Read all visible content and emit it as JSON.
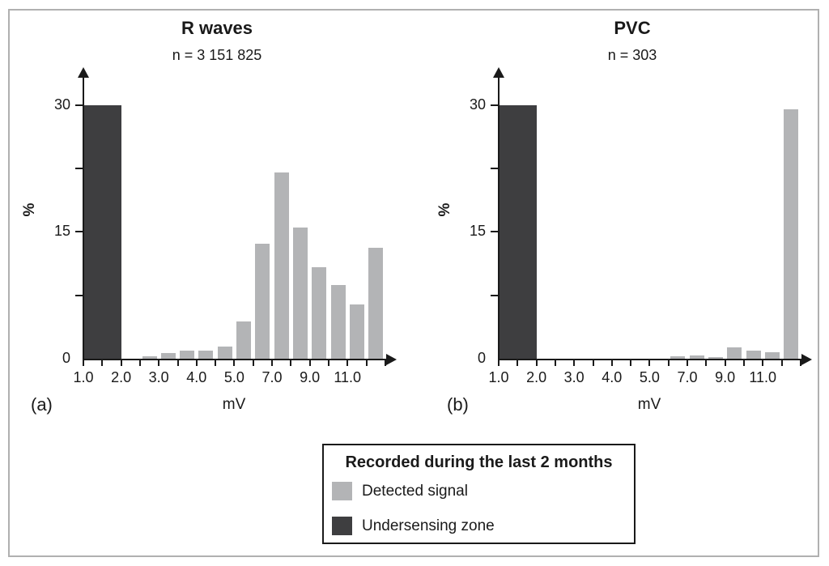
{
  "figure": {
    "background": "#ffffff",
    "frame_border_color": "#b0b0b0"
  },
  "colors": {
    "detected_signal": "#b3b4b6",
    "undersensing_zone": "#3e3e40",
    "axis": "#1a1a1a",
    "text": "#1a1a1a"
  },
  "chart_data": [
    {
      "type": "bar",
      "panel_label": "(a)",
      "title": "R waves",
      "subtitle": "n = 3 151 825",
      "n": "3 151 825",
      "xlabel": "mV",
      "ylabel": "%",
      "ylim": [
        0,
        33
      ],
      "x_scale": "ticks every 0.5 mV from 1.0 to 5.0, then every 1.0 mV up to 13.0",
      "yticks": [
        {
          "v": 0,
          "label": "0"
        },
        {
          "v": 15,
          "label": "15"
        },
        {
          "v": 30,
          "label": "30"
        }
      ],
      "ytick_marks": [
        7.5,
        15,
        22.5,
        30
      ],
      "xticks": [
        {
          "v": 1.0,
          "label": "1.0"
        },
        {
          "v": 2.0,
          "label": "2.0"
        },
        {
          "v": 3.0,
          "label": "3.0"
        },
        {
          "v": 4.0,
          "label": "4.0"
        },
        {
          "v": 5.0,
          "label": "5.0"
        },
        {
          "v": 7.0,
          "label": "7.0"
        },
        {
          "v": 9.0,
          "label": "9.0"
        },
        {
          "v": 11.0,
          "label": "11.0"
        }
      ],
      "xtick_marks": [
        1.0,
        1.5,
        2.0,
        2.5,
        3.0,
        3.5,
        4.0,
        4.5,
        5.0,
        6.0,
        7.0,
        8.0,
        9.0,
        10.0,
        11.0,
        12.0,
        13.0
      ],
      "series": [
        {
          "name": "Undersensing zone",
          "color_key": "undersensing_zone",
          "bars": [
            {
              "from": 1.0,
              "to": 2.0,
              "value": 30
            }
          ]
        },
        {
          "name": "Detected signal",
          "color_key": "detected_signal",
          "bars": [
            {
              "from": 2.5,
              "to": 3.0,
              "value": 0.25
            },
            {
              "from": 3.0,
              "to": 3.5,
              "value": 0.7
            },
            {
              "from": 3.5,
              "to": 4.0,
              "value": 1.0
            },
            {
              "from": 4.0,
              "to": 4.5,
              "value": 1.0
            },
            {
              "from": 4.5,
              "to": 5.0,
              "value": 1.4
            },
            {
              "from": 5.0,
              "to": 6.0,
              "value": 4.4
            },
            {
              "from": 6.0,
              "to": 7.0,
              "value": 13.6
            },
            {
              "from": 7.0,
              "to": 8.0,
              "value": 22.0
            },
            {
              "from": 8.0,
              "to": 9.0,
              "value": 15.5
            },
            {
              "from": 9.0,
              "to": 10.0,
              "value": 10.8
            },
            {
              "from": 10.0,
              "to": 11.0,
              "value": 8.7
            },
            {
              "from": 11.0,
              "to": 12.0,
              "value": 6.4
            },
            {
              "from": 12.0,
              "to": 13.0,
              "value": 13.1
            }
          ]
        }
      ]
    },
    {
      "type": "bar",
      "panel_label": "(b)",
      "title": "PVC",
      "subtitle": "n = 303",
      "n": "303",
      "xlabel": "mV",
      "ylabel": "%",
      "ylim": [
        0,
        33
      ],
      "x_scale": "ticks every 0.5 mV from 1.0 to 5.0, then every 1.0 mV up to 13.0",
      "yticks": [
        {
          "v": 0,
          "label": "0"
        },
        {
          "v": 15,
          "label": "15"
        },
        {
          "v": 30,
          "label": "30"
        }
      ],
      "ytick_marks": [
        7.5,
        15,
        22.5,
        30
      ],
      "xticks": [
        {
          "v": 1.0,
          "label": "1.0"
        },
        {
          "v": 2.0,
          "label": "2.0"
        },
        {
          "v": 3.0,
          "label": "3.0"
        },
        {
          "v": 4.0,
          "label": "4.0"
        },
        {
          "v": 5.0,
          "label": "5.0"
        },
        {
          "v": 7.0,
          "label": "7.0"
        },
        {
          "v": 9.0,
          "label": "9.0"
        },
        {
          "v": 11.0,
          "label": "11.0"
        }
      ],
      "xtick_marks": [
        1.0,
        1.5,
        2.0,
        2.5,
        3.0,
        3.5,
        4.0,
        4.5,
        5.0,
        6.0,
        7.0,
        8.0,
        9.0,
        10.0,
        11.0,
        12.0,
        13.0
      ],
      "series": [
        {
          "name": "Undersensing zone",
          "color_key": "undersensing_zone",
          "bars": [
            {
              "from": 1.0,
              "to": 2.0,
              "value": 30
            }
          ]
        },
        {
          "name": "Detected signal",
          "color_key": "detected_signal",
          "bars": [
            {
              "from": 6.0,
              "to": 7.0,
              "value": 0.3
            },
            {
              "from": 7.0,
              "to": 8.0,
              "value": 0.35
            },
            {
              "from": 8.0,
              "to": 9.0,
              "value": 0.2
            },
            {
              "from": 9.0,
              "to": 10.0,
              "value": 1.3
            },
            {
              "from": 10.0,
              "to": 11.0,
              "value": 1.0
            },
            {
              "from": 11.0,
              "to": 12.0,
              "value": 0.75
            },
            {
              "from": 12.0,
              "to": 13.0,
              "value": 29.5
            }
          ]
        }
      ]
    }
  ],
  "legend": {
    "title": "Recorded during the last 2 months",
    "items": [
      {
        "label": "Detected signal",
        "color_key": "detected_signal"
      },
      {
        "label": "Undersensing zone",
        "color_key": "undersensing_zone"
      }
    ]
  }
}
